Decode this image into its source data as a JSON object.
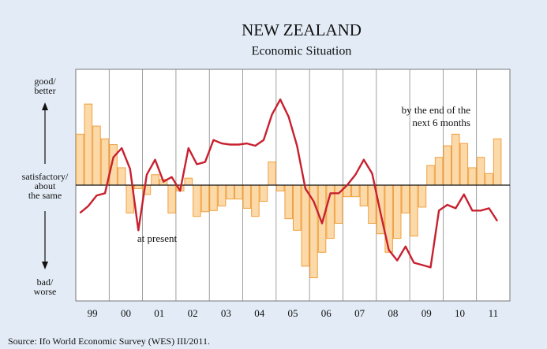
{
  "chart_data": {
    "type": "bar_line",
    "title": "NEW ZEALAND",
    "subtitle": "Economic Situation",
    "source": "Source: Ifo World Economic Survey (WES) III/2011.",
    "y_labels": {
      "top": [
        "good/",
        "better"
      ],
      "middle": [
        "satisfactory/",
        "about",
        "the same"
      ],
      "bottom": [
        "bad/",
        "worse"
      ]
    },
    "annotations": {
      "line": [
        "at present"
      ],
      "bars": [
        "by the end of the",
        "next 6 months"
      ]
    },
    "xlim": [
      1999,
      2012
    ],
    "xticks": [
      {
        "value": 1999.5,
        "label": "99"
      },
      {
        "value": 2000.5,
        "label": "00"
      },
      {
        "value": 2001.5,
        "label": "01"
      },
      {
        "value": 2002.5,
        "label": "02"
      },
      {
        "value": 2003.5,
        "label": "03"
      },
      {
        "value": 2004.5,
        "label": "04"
      },
      {
        "value": 2005.5,
        "label": "05"
      },
      {
        "value": 2006.5,
        "label": "06"
      },
      {
        "value": 2007.5,
        "label": "07"
      },
      {
        "value": 2008.5,
        "label": "08"
      },
      {
        "value": 2009.5,
        "label": "09"
      },
      {
        "value": 2010.5,
        "label": "10"
      },
      {
        "value": 2011.5,
        "label": "11"
      }
    ],
    "ylim": [
      -10,
      10
    ],
    "x": [
      1999.125,
      1999.375,
      1999.625,
      1999.875,
      2000.125,
      2000.375,
      2000.625,
      2000.875,
      2001.125,
      2001.375,
      2001.625,
      2001.875,
      2002.125,
      2002.375,
      2002.625,
      2002.875,
      2003.125,
      2003.375,
      2003.625,
      2003.875,
      2004.125,
      2004.375,
      2004.625,
      2004.875,
      2005.125,
      2005.375,
      2005.625,
      2005.875,
      2006.125,
      2006.375,
      2006.625,
      2006.875,
      2007.125,
      2007.375,
      2007.625,
      2007.875,
      2008.125,
      2008.375,
      2008.625,
      2008.875,
      2009.125,
      2009.375,
      2009.625,
      2009.875,
      2010.125,
      2010.375,
      2010.625,
      2010.875,
      2011.125,
      2011.375,
      2011.625
    ],
    "series": [
      {
        "kind": "bar",
        "color": "#fcd9a8",
        "stroke": "#f0a040",
        "values": [
          4.4,
          7.0,
          5.1,
          4.0,
          3.5,
          1.5,
          -2.4,
          -0.3,
          -0.8,
          0.9,
          0.5,
          -2.4,
          -0.5,
          0.6,
          -2.7,
          -2.3,
          -2.2,
          -1.8,
          -1.2,
          -1.2,
          -2.0,
          -2.7,
          -1.4,
          2.0,
          -0.5,
          -2.9,
          -3.9,
          -7.0,
          -8.0,
          -5.8,
          -4.6,
          -3.3,
          -1.0,
          -1.0,
          -1.8,
          -3.3,
          -4.2,
          -5.8,
          -4.6,
          -2.4,
          -4.4,
          -1.9,
          1.7,
          2.4,
          3.4,
          4.4,
          3.6,
          1.5,
          2.4,
          1.0,
          4.0
        ]
      },
      {
        "kind": "line",
        "color": "#c8202f",
        "values": [
          -2.4,
          -1.8,
          -0.9,
          -0.7,
          2.4,
          3.2,
          1.4,
          -3.9,
          0.9,
          2.2,
          0.3,
          0.7,
          -0.5,
          3.2,
          1.8,
          2.0,
          3.9,
          3.6,
          3.5,
          3.5,
          3.6,
          3.4,
          3.9,
          6.1,
          7.4,
          5.9,
          3.4,
          -0.3,
          -1.4,
          -3.3,
          -0.7,
          -0.7,
          0.0,
          0.9,
          2.2,
          1.0,
          -2.4,
          -5.6,
          -6.5,
          -5.3,
          -6.7,
          -6.9,
          -7.1,
          -2.2,
          -1.7,
          -2.0,
          -0.8,
          -2.2,
          -2.2,
          -2.0,
          -3.1
        ]
      }
    ]
  }
}
